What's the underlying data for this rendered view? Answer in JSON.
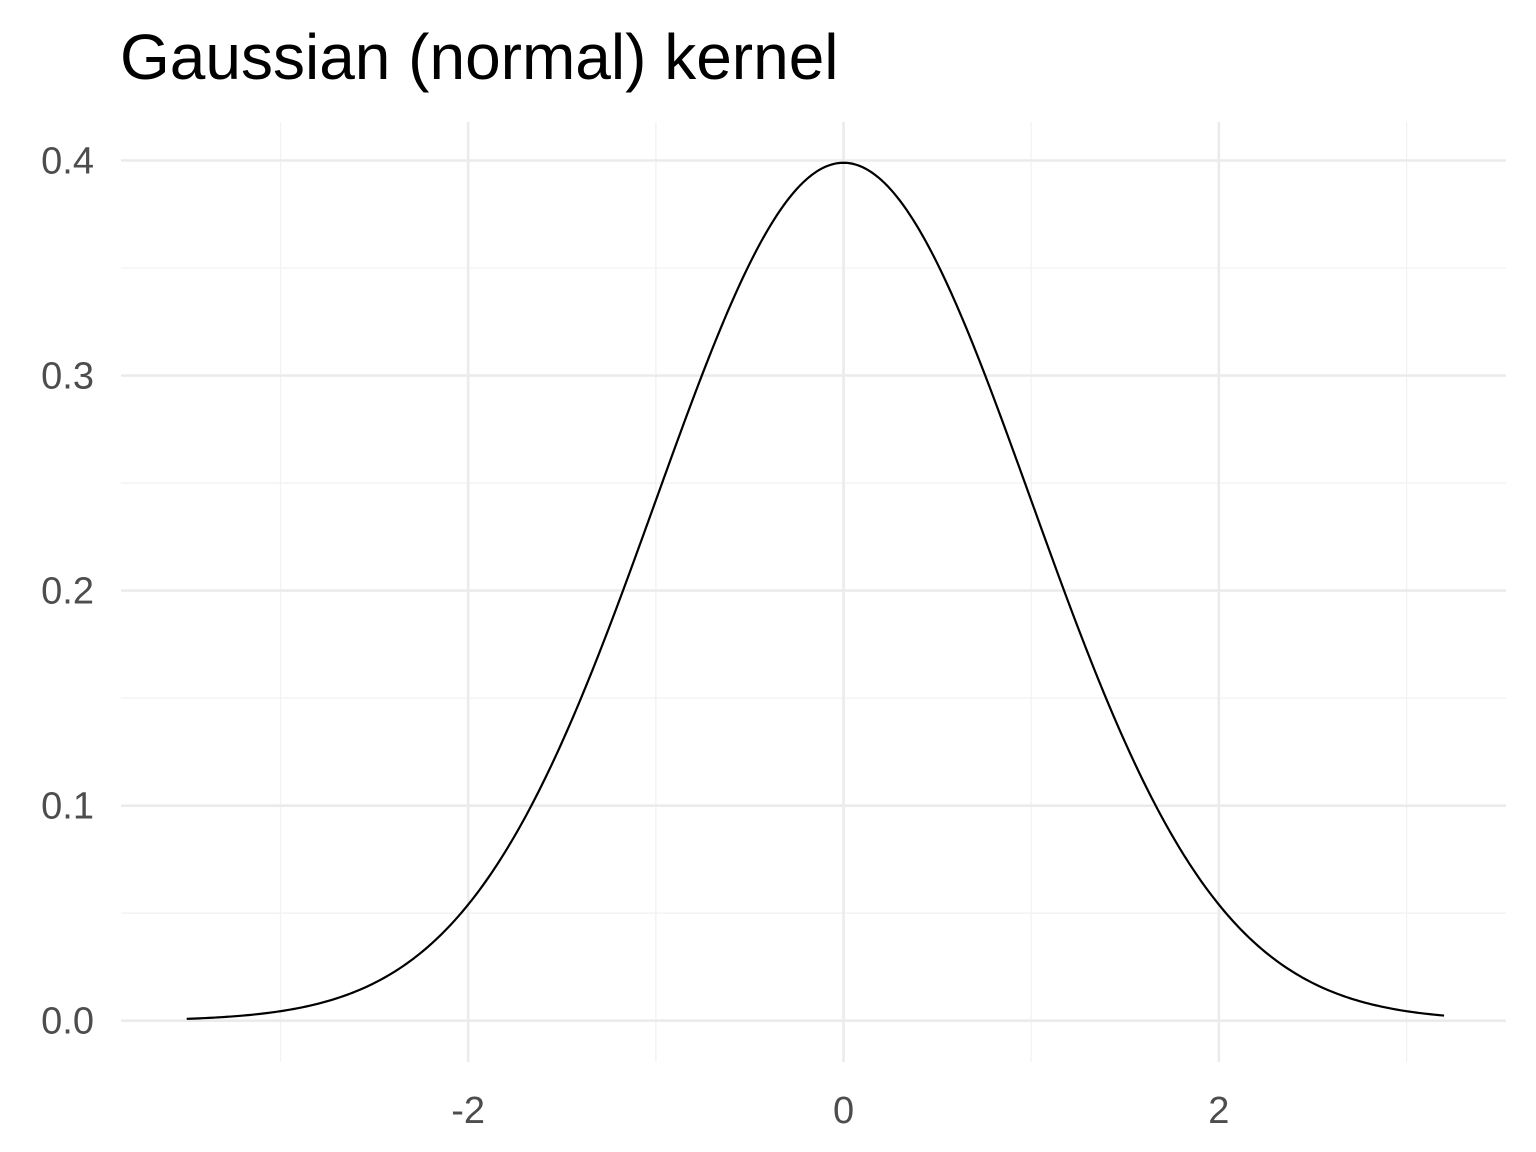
{
  "chart_data": {
    "type": "line",
    "title": "Gaussian (normal) kernel",
    "xlabel": "",
    "ylabel": "",
    "x_range": [
      -3.5,
      3.2
    ],
    "y_range": [
      0,
      0.4
    ],
    "xlim": [
      -3.85,
      3.53
    ],
    "ylim": [
      -0.0192,
      0.4179
    ],
    "x_ticks": [
      -2,
      0,
      2
    ],
    "x_tick_labels": [
      "-2",
      "0",
      "2"
    ],
    "x_minor_ticks": [
      -3,
      -1,
      1,
      3
    ],
    "y_ticks": [
      0.0,
      0.1,
      0.2,
      0.3,
      0.4
    ],
    "y_tick_labels": [
      "0.0",
      "0.1",
      "0.2",
      "0.3",
      "0.4"
    ],
    "y_minor_ticks": [
      0.05,
      0.15,
      0.25,
      0.35
    ],
    "grid": true,
    "legend": "none",
    "series": [
      {
        "function": "standard normal density",
        "mean": 0,
        "sd": 1,
        "color": "#000000",
        "x": [
          -3.5,
          -3.0,
          -2.5,
          -2.0,
          -1.5,
          -1.0,
          -0.5,
          0.0,
          0.5,
          1.0,
          1.5,
          2.0,
          2.5,
          3.0,
          3.2
        ],
        "y": [
          0.0009,
          0.0044,
          0.0175,
          0.054,
          0.1295,
          0.242,
          0.3521,
          0.3989,
          0.3521,
          0.242,
          0.1295,
          0.054,
          0.0175,
          0.0044,
          0.0024
        ]
      }
    ]
  }
}
